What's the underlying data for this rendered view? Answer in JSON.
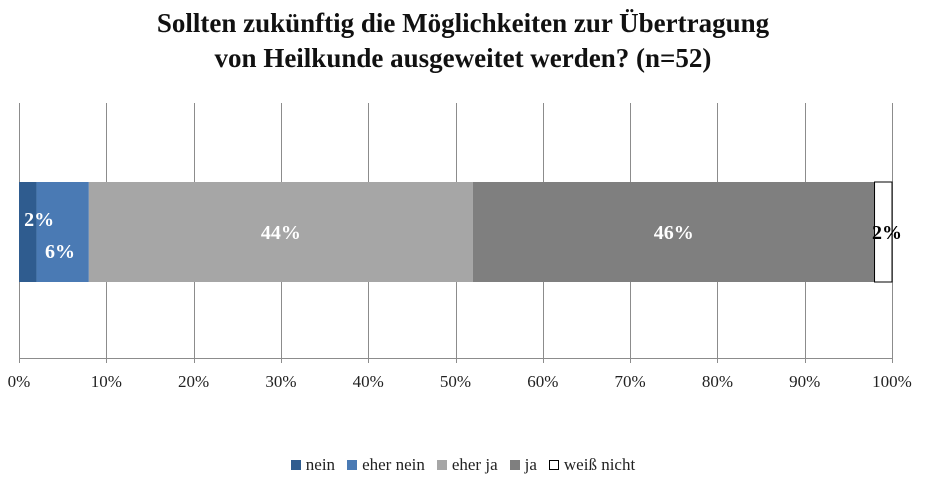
{
  "chart_data": {
    "type": "bar",
    "orientation": "horizontal",
    "stacked": "percent",
    "title_lines": [
      "Sollten zukünftig  die Möglichkeiten zur Übertragung",
      "von Heilkunde ausgeweitet werden? (n=52)"
    ],
    "categories": [
      ""
    ],
    "series": [
      {
        "name": "nein",
        "values": [
          2
        ],
        "label": "2%",
        "color": "#2f5c8f"
      },
      {
        "name": "eher nein",
        "values": [
          6
        ],
        "label": "6%",
        "color": "#4a7ab4"
      },
      {
        "name": "eher ja",
        "values": [
          44
        ],
        "label": "44%",
        "color": "#a6a6a6"
      },
      {
        "name": "ja",
        "values": [
          46
        ],
        "label": "46%",
        "color": "#7f7f7f"
      },
      {
        "name": "weiß nicht",
        "values": [
          2
        ],
        "label": "2%",
        "color": "#ffffff"
      }
    ],
    "x_ticks": [
      "0%",
      "10%",
      "20%",
      "30%",
      "40%",
      "50%",
      "60%",
      "70%",
      "80%",
      "90%",
      "100%"
    ],
    "xlim": [
      0,
      100
    ],
    "grid": true,
    "legend_position": "bottom"
  }
}
